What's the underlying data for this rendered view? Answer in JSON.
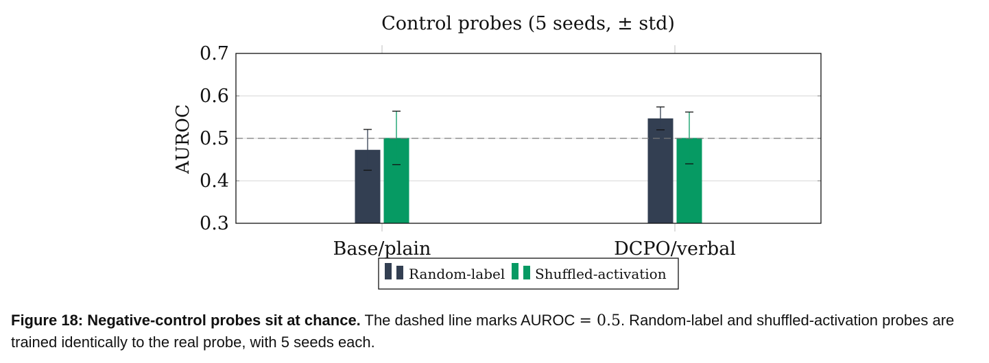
{
  "chart_data": {
    "type": "bar",
    "title": "Control probes (5 seeds, ± std)",
    "xlabel": "",
    "ylabel": "AUROC",
    "ylim": [
      0.3,
      0.7
    ],
    "yticks": [
      "0.3",
      "0.4",
      "0.5",
      "0.6",
      "0.7"
    ],
    "categories": [
      "Base/plain",
      "DCPO/verbal"
    ],
    "series": [
      {
        "name": "Random-label",
        "color": "#333f52",
        "values": [
          0.473,
          0.547
        ],
        "err_upper": [
          0.521,
          0.574
        ],
        "err_lower": [
          0.425,
          0.52
        ]
      },
      {
        "name": "Shuffled-activation",
        "color": "#069a63",
        "values": [
          0.501,
          0.501
        ],
        "err_upper": [
          0.564,
          0.562
        ],
        "err_lower": [
          0.438,
          0.44
        ]
      }
    ],
    "reference_line": {
      "y": 0.5,
      "style": "dashed"
    },
    "grid": "horizontal",
    "legend_position": "bottom-center"
  },
  "caption": {
    "lead": "Figure 18: Negative-control probes sit at chance.",
    "text_before": " The dashed line marks AUROC ",
    "math": "= 0.5",
    "text_after": ". Random-label and shuffled-activation probes are trained identically to the real probe, with 5 seeds each."
  }
}
